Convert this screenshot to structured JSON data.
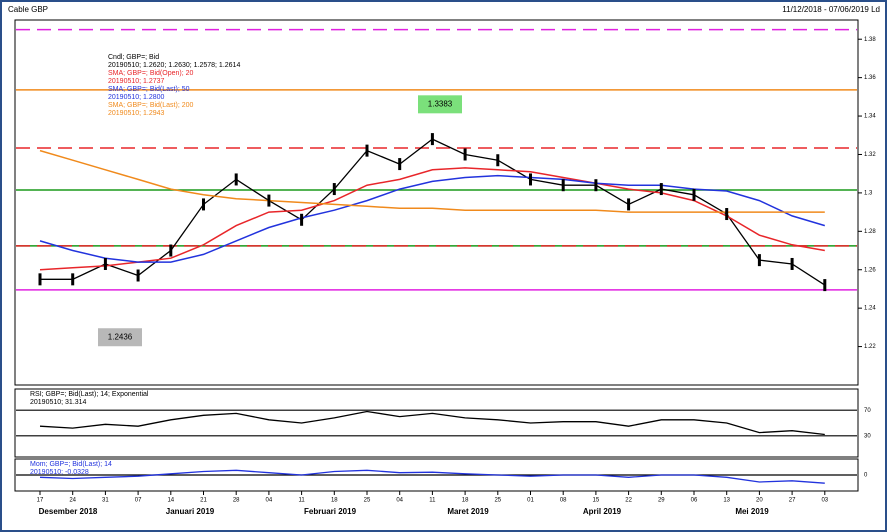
{
  "chart_data": {
    "type": "line",
    "title": "Cable GBP",
    "date_range": "11/12/2018 - 07/06/2019 Ld",
    "categories": [
      "17",
      "24",
      "31",
      "07",
      "14",
      "21",
      "28",
      "04",
      "11",
      "18",
      "25",
      "04",
      "11",
      "18",
      "25",
      "01",
      "08",
      "15",
      "22",
      "29",
      "06",
      "13",
      "20",
      "27",
      "03"
    ],
    "months": [
      "Desember 2018",
      "Januari 2019",
      "Februari 2019",
      "Maret 2019",
      "April 2019",
      "Mei 2019"
    ],
    "series": [
      {
        "name": "Cndl; GBP=; Bid",
        "legend_value": "20190510; 1.2620; 1.2630; 1.2578; 1.2614",
        "color": "#000000",
        "values": [
          1.255,
          1.255,
          1.263,
          1.257,
          1.27,
          1.294,
          1.307,
          1.296,
          1.286,
          1.302,
          1.322,
          1.315,
          1.328,
          1.32,
          1.317,
          1.307,
          1.304,
          1.304,
          1.294,
          1.302,
          1.299,
          1.289,
          1.265,
          1.263,
          1.252
        ]
      },
      {
        "name": "SMA; GBP=; Bid(Open); 20",
        "legend_value": "20190510; 1.2737",
        "color": "#e8262a",
        "values": [
          1.26,
          1.261,
          1.262,
          1.264,
          1.266,
          1.273,
          1.283,
          1.29,
          1.291,
          1.296,
          1.304,
          1.307,
          1.312,
          1.313,
          1.312,
          1.311,
          1.308,
          1.305,
          1.302,
          1.3,
          1.296,
          1.288,
          1.278,
          1.273,
          1.27
        ]
      },
      {
        "name": "SMA; GBP=; Bid(Last); 50",
        "legend_value": "20190510; 1.2800",
        "color": "#2233dd",
        "values": [
          1.275,
          1.27,
          1.266,
          1.264,
          1.264,
          1.268,
          1.275,
          1.282,
          1.287,
          1.291,
          1.296,
          1.302,
          1.306,
          1.308,
          1.309,
          1.308,
          1.307,
          1.305,
          1.304,
          1.304,
          1.302,
          1.301,
          1.296,
          1.288,
          1.283
        ]
      },
      {
        "name": "SMA; GBP=; Bid(Last); 200",
        "legend_value": "20190510; 1.2943",
        "color": "#f08a1c",
        "values": [
          1.322,
          1.317,
          1.312,
          1.307,
          1.302,
          1.299,
          1.297,
          1.296,
          1.295,
          1.294,
          1.293,
          1.292,
          1.292,
          1.291,
          1.291,
          1.291,
          1.291,
          1.291,
          1.29,
          1.29,
          1.29,
          1.29,
          1.29,
          1.29,
          1.29
        ]
      }
    ],
    "levels": [
      {
        "value": 1.385,
        "color": "#e020e0",
        "dashed": true
      },
      {
        "value": 1.3536,
        "color": "#f08a1c",
        "dashed": false
      },
      {
        "value": 1.3234,
        "color": "#e8262a",
        "dashed": true
      },
      {
        "value": 1.3015,
        "color": "#1a9a1a",
        "dashed": false
      },
      {
        "value": 1.2724,
        "color": "#1a9a1a",
        "dashed": false
      },
      {
        "value": 1.2724,
        "color": "#e8262a",
        "dashed": true
      },
      {
        "value": 1.2495,
        "color": "#e020e0",
        "dashed": false
      }
    ],
    "annotations": [
      {
        "value": 1.3383,
        "color": "#7be07b"
      },
      {
        "value": 1.2436,
        "color": "#b8b8b8"
      }
    ],
    "ylim": [
      1.2,
      1.39
    ],
    "yticks": [
      1.22,
      1.24,
      1.26,
      1.28,
      1.3,
      1.32,
      1.34,
      1.36,
      1.38
    ],
    "rsi": {
      "name": "RSI; GBP=; Bid(Last); 14; Exponential",
      "legend_value": "20190510; 31.314",
      "color": "#000000",
      "values": [
        45,
        42,
        48,
        45,
        55,
        62,
        65,
        55,
        50,
        58,
        68,
        60,
        65,
        58,
        55,
        50,
        52,
        52,
        45,
        55,
        55,
        50,
        35,
        38,
        32
      ],
      "ylim": [
        0,
        100
      ],
      "levels": [
        70,
        30
      ],
      "yticks": [
        30,
        70
      ]
    },
    "mom": {
      "name": "Mom; GBP=; Bid(Last); 14",
      "legend_value": "20190510; -0.0328",
      "color": "#2233dd",
      "values": [
        -0.01,
        -0.015,
        -0.01,
        -0.005,
        0.005,
        0.015,
        0.02,
        0.01,
        0,
        0.015,
        0.02,
        0.01,
        0.012,
        0.005,
        0,
        -0.005,
        0,
        0,
        -0.01,
        0,
        0,
        -0.01,
        -0.03,
        -0.025,
        -0.035
      ],
      "ylim": [
        -0.06,
        0.06
      ],
      "levels": [
        0
      ],
      "yticks": [
        0
      ]
    }
  }
}
